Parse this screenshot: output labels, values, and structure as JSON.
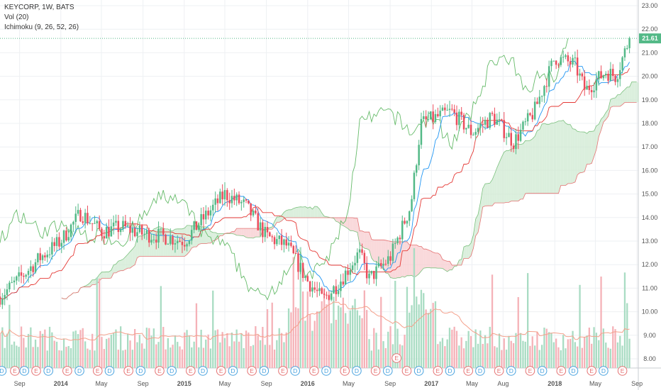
{
  "header": {
    "symbol_line": "KEYCORP, 1W, BATS",
    "volume_line": "Vol (20)",
    "ichimoku_line": "Ichimoku (9, 26, 52, 26)"
  },
  "last_price": {
    "value": 21.61,
    "label": "21.61"
  },
  "colors": {
    "up": "#53b987",
    "down": "#eb4d5c",
    "vol_up": "#a9dcc3",
    "vol_down": "#f5b2b8",
    "tenkan": "#2196f3",
    "kijun": "#e53935",
    "lagging": "#66bb6a",
    "cloud_bull": "#cfe9d1",
    "cloud_bear": "#f7cccf",
    "vol_ma": "#f4a08b"
  },
  "chart_data": {
    "type": "candlestick",
    "y_ticks": [
      "8.00",
      "9.00",
      "10.00",
      "11.00",
      "12.00",
      "13.00",
      "14.00",
      "15.00",
      "16.00",
      "17.00",
      "18.00",
      "19.00",
      "20.00",
      "21.00",
      "22.00",
      "23.00"
    ],
    "ylim": [
      7.5,
      23.3
    ],
    "x_ticks": [
      "Sep",
      "2014",
      "May",
      "Sep",
      "2015",
      "May",
      "Sep",
      "2016",
      "May",
      "Sep",
      "2017",
      "May",
      "Aug",
      "2018",
      "May",
      "Sep"
    ],
    "x_tick_dates": [
      "2013-09-01",
      "2014-01-01",
      "2014-05-01",
      "2014-09-01",
      "2015-01-01",
      "2015-05-01",
      "2015-09-01",
      "2016-01-01",
      "2016-05-01",
      "2016-09-01",
      "2017-01-01",
      "2017-05-01",
      "2017-08-01",
      "2018-01-01",
      "2018-05-01",
      "2018-09-01"
    ],
    "price_path": [
      [
        "2013-07-01",
        10.6
      ],
      [
        "2013-09-01",
        11.4
      ],
      [
        "2013-11-01",
        12.3
      ],
      [
        "2014-01-01",
        13.0
      ],
      [
        "2014-03-01",
        14.2
      ],
      [
        "2014-05-01",
        13.4
      ],
      [
        "2014-07-01",
        13.6
      ],
      [
        "2014-09-01",
        13.3
      ],
      [
        "2014-11-01",
        13.2
      ],
      [
        "2015-01-01",
        13.0
      ],
      [
        "2015-03-01",
        14.0
      ],
      [
        "2015-05-01",
        15.0
      ],
      [
        "2015-07-01",
        14.5
      ],
      [
        "2015-09-01",
        13.2
      ],
      [
        "2015-11-01",
        12.8
      ],
      [
        "2016-01-01",
        11.3
      ],
      [
        "2016-02-15",
        10.5
      ],
      [
        "2016-04-01",
        11.2
      ],
      [
        "2016-06-01",
        12.5
      ],
      [
        "2016-07-01",
        11.4
      ],
      [
        "2016-09-01",
        12.3
      ],
      [
        "2016-11-01",
        14.5
      ],
      [
        "2016-12-01",
        18.0
      ],
      [
        "2017-03-01",
        18.5
      ],
      [
        "2017-05-01",
        17.6
      ],
      [
        "2017-07-01",
        18.3
      ],
      [
        "2017-09-01",
        17.2
      ],
      [
        "2017-11-01",
        18.5
      ],
      [
        "2018-01-01",
        20.8
      ],
      [
        "2018-03-01",
        20.5
      ],
      [
        "2018-04-01",
        19.4
      ],
      [
        "2018-06-01",
        20.2
      ],
      [
        "2018-07-01",
        20.0
      ],
      [
        "2018-08-10",
        21.61
      ]
    ],
    "earnings_markers": [
      [
        "2013-07-10",
        "D"
      ],
      [
        "2013-08-18",
        "E"
      ],
      [
        "2013-09-15",
        "D"
      ],
      [
        "2013-10-20",
        "E"
      ],
      [
        "2013-11-25",
        "D"
      ],
      [
        "2014-01-20",
        "E"
      ],
      [
        "2014-02-25",
        "D"
      ],
      [
        "2014-04-20",
        "E"
      ],
      [
        "2014-05-25",
        "D"
      ],
      [
        "2014-07-20",
        "E"
      ],
      [
        "2014-08-25",
        "D"
      ],
      [
        "2014-10-20",
        "E"
      ],
      [
        "2014-11-25",
        "D"
      ],
      [
        "2015-01-20",
        "E"
      ],
      [
        "2015-02-25",
        "D"
      ],
      [
        "2015-04-20",
        "E"
      ],
      [
        "2015-05-25",
        "D"
      ],
      [
        "2015-07-20",
        "E"
      ],
      [
        "2015-08-25",
        "D"
      ],
      [
        "2015-10-20",
        "E"
      ],
      [
        "2015-11-25",
        "D"
      ],
      [
        "2016-01-20",
        "E"
      ],
      [
        "2016-02-25",
        "D"
      ],
      [
        "2016-04-20",
        "E"
      ],
      [
        "2016-05-25",
        "D"
      ],
      [
        "2016-07-20",
        "E"
      ],
      [
        "2016-08-25",
        "D"
      ],
      [
        "2016-10-20",
        "E"
      ],
      [
        "2016-11-25",
        "D"
      ],
      [
        "2017-01-20",
        "E"
      ],
      [
        "2017-02-25",
        "D"
      ],
      [
        "2017-04-20",
        "E"
      ],
      [
        "2017-05-25",
        "D"
      ],
      [
        "2017-07-20",
        "E"
      ],
      [
        "2017-08-25",
        "D"
      ],
      [
        "2017-10-20",
        "E"
      ],
      [
        "2017-11-25",
        "D"
      ],
      [
        "2018-01-20",
        "E"
      ],
      [
        "2018-02-25",
        "D"
      ],
      [
        "2018-04-20",
        "E"
      ],
      [
        "2018-05-25",
        "D"
      ],
      [
        "2018-07-20",
        "E"
      ]
    ],
    "extra_marker": [
      "2016-09-20",
      "E"
    ]
  }
}
